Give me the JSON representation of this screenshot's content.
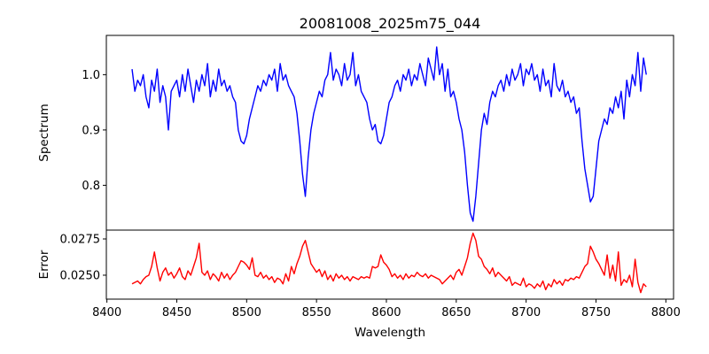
{
  "chart_data": [
    {
      "type": "line",
      "title": "20081008_2025m75_044",
      "xlabel": "",
      "ylabel": "Spectrum",
      "xlim": [
        8399.6,
        8805.5
      ],
      "ylim": [
        0.719,
        1.071
      ],
      "yticks": [
        0.8,
        0.9,
        1.0
      ],
      "ytick_labels": [
        "0.8",
        "0.9",
        "1.0"
      ],
      "grid": false,
      "series": [
        {
          "name": "Spectrum",
          "color": "#0000ff",
          "x_start": 8418,
          "x_step": 2,
          "values": [
            1.01,
            0.97,
            0.99,
            0.98,
            1.0,
            0.96,
            0.94,
            0.99,
            0.97,
            1.01,
            0.95,
            0.98,
            0.96,
            0.9,
            0.97,
            0.98,
            0.99,
            0.96,
            1.0,
            0.97,
            1.01,
            0.98,
            0.95,
            0.99,
            0.97,
            1.0,
            0.98,
            1.02,
            0.96,
            0.99,
            0.97,
            1.01,
            0.98,
            0.99,
            0.97,
            0.98,
            0.96,
            0.95,
            0.9,
            0.88,
            0.875,
            0.89,
            0.92,
            0.94,
            0.96,
            0.98,
            0.97,
            0.99,
            0.98,
            1.0,
            0.99,
            1.01,
            0.97,
            1.02,
            0.99,
            1.0,
            0.98,
            0.97,
            0.96,
            0.93,
            0.88,
            0.82,
            0.78,
            0.85,
            0.9,
            0.93,
            0.95,
            0.97,
            0.96,
            0.99,
            1.0,
            1.04,
            0.99,
            1.01,
            1.0,
            0.98,
            1.02,
            0.99,
            1.0,
            1.04,
            0.98,
            1.0,
            0.97,
            0.96,
            0.95,
            0.92,
            0.9,
            0.91,
            0.88,
            0.875,
            0.89,
            0.92,
            0.95,
            0.96,
            0.98,
            0.99,
            0.97,
            1.0,
            0.99,
            1.01,
            0.98,
            1.0,
            0.99,
            1.02,
            1.0,
            0.98,
            1.03,
            1.01,
            0.99,
            1.05,
            1.0,
            1.02,
            0.97,
            1.01,
            0.96,
            0.97,
            0.95,
            0.92,
            0.9,
            0.86,
            0.8,
            0.75,
            0.735,
            0.78,
            0.84,
            0.9,
            0.93,
            0.91,
            0.95,
            0.97,
            0.96,
            0.98,
            0.99,
            0.97,
            1.0,
            0.98,
            1.01,
            0.99,
            1.0,
            1.02,
            0.98,
            1.01,
            1.0,
            1.02,
            0.99,
            1.0,
            0.97,
            1.01,
            0.98,
            0.99,
            0.96,
            1.02,
            0.98,
            0.97,
            0.99,
            0.96,
            0.97,
            0.95,
            0.96,
            0.93,
            0.94,
            0.88,
            0.83,
            0.8,
            0.77,
            0.78,
            0.83,
            0.88,
            0.9,
            0.92,
            0.91,
            0.94,
            0.93,
            0.96,
            0.94,
            0.97,
            0.92,
            0.99,
            0.96,
            1.0,
            0.98,
            1.04,
            0.97,
            1.03,
            1.0
          ]
        }
      ]
    },
    {
      "type": "line",
      "title": "",
      "xlabel": "Wavelength",
      "ylabel": "Error",
      "xlim": [
        8399.6,
        8805.5
      ],
      "ylim": [
        0.02335,
        0.02811
      ],
      "xticks": [
        8400,
        8450,
        8500,
        8550,
        8600,
        8650,
        8700,
        8750,
        8800
      ],
      "xtick_labels": [
        "8400",
        "8450",
        "8500",
        "8550",
        "8600",
        "8650",
        "8700",
        "8750",
        "8800"
      ],
      "yticks": [
        0.025,
        0.0275
      ],
      "ytick_labels": [
        "0.0250",
        "0.0275"
      ],
      "grid": false,
      "series": [
        {
          "name": "Error",
          "color": "#ff0000",
          "x_start": 8418,
          "x_step": 2,
          "values": [
            0.0244,
            0.0245,
            0.0246,
            0.0244,
            0.0247,
            0.0249,
            0.025,
            0.0256,
            0.0266,
            0.0255,
            0.0246,
            0.0252,
            0.0255,
            0.025,
            0.0252,
            0.0248,
            0.0251,
            0.0255,
            0.0249,
            0.0247,
            0.0253,
            0.025,
            0.0256,
            0.0262,
            0.0272,
            0.0252,
            0.025,
            0.0253,
            0.0247,
            0.0251,
            0.0249,
            0.0246,
            0.0252,
            0.0248,
            0.0251,
            0.0247,
            0.025,
            0.0252,
            0.0256,
            0.026,
            0.0259,
            0.0257,
            0.0254,
            0.0262,
            0.025,
            0.0249,
            0.0252,
            0.0248,
            0.025,
            0.0247,
            0.0249,
            0.0245,
            0.0248,
            0.0247,
            0.0244,
            0.0251,
            0.0246,
            0.0256,
            0.0251,
            0.0258,
            0.0263,
            0.027,
            0.0274,
            0.0266,
            0.0258,
            0.0255,
            0.0252,
            0.0254,
            0.0249,
            0.0253,
            0.0247,
            0.025,
            0.0246,
            0.0251,
            0.0248,
            0.025,
            0.0247,
            0.0249,
            0.0246,
            0.0249,
            0.0248,
            0.0247,
            0.0249,
            0.0248,
            0.0249,
            0.0248,
            0.0256,
            0.0255,
            0.0256,
            0.0264,
            0.0259,
            0.0257,
            0.0254,
            0.0249,
            0.0251,
            0.0248,
            0.025,
            0.0247,
            0.0251,
            0.0248,
            0.025,
            0.0249,
            0.0252,
            0.025,
            0.0249,
            0.0251,
            0.0248,
            0.025,
            0.0249,
            0.0248,
            0.0247,
            0.0244,
            0.0246,
            0.0248,
            0.025,
            0.0247,
            0.0252,
            0.0254,
            0.025,
            0.0256,
            0.0262,
            0.0272,
            0.0279,
            0.0274,
            0.0263,
            0.0261,
            0.0256,
            0.0254,
            0.0251,
            0.0255,
            0.0249,
            0.0252,
            0.025,
            0.0248,
            0.0246,
            0.0249,
            0.0243,
            0.0245,
            0.0244,
            0.0243,
            0.0248,
            0.0242,
            0.0244,
            0.0243,
            0.0241,
            0.0244,
            0.0242,
            0.0246,
            0.024,
            0.0244,
            0.0242,
            0.0247,
            0.0244,
            0.0246,
            0.0243,
            0.0247,
            0.0246,
            0.0248,
            0.0247,
            0.0249,
            0.0248,
            0.0252,
            0.0256,
            0.0258,
            0.027,
            0.0266,
            0.0261,
            0.0258,
            0.0254,
            0.025,
            0.0264,
            0.0248,
            0.0257,
            0.0246,
            0.0266,
            0.0243,
            0.0247,
            0.0245,
            0.025,
            0.0242,
            0.0261,
            0.0245,
            0.0238,
            0.0244,
            0.0242
          ]
        }
      ]
    }
  ]
}
